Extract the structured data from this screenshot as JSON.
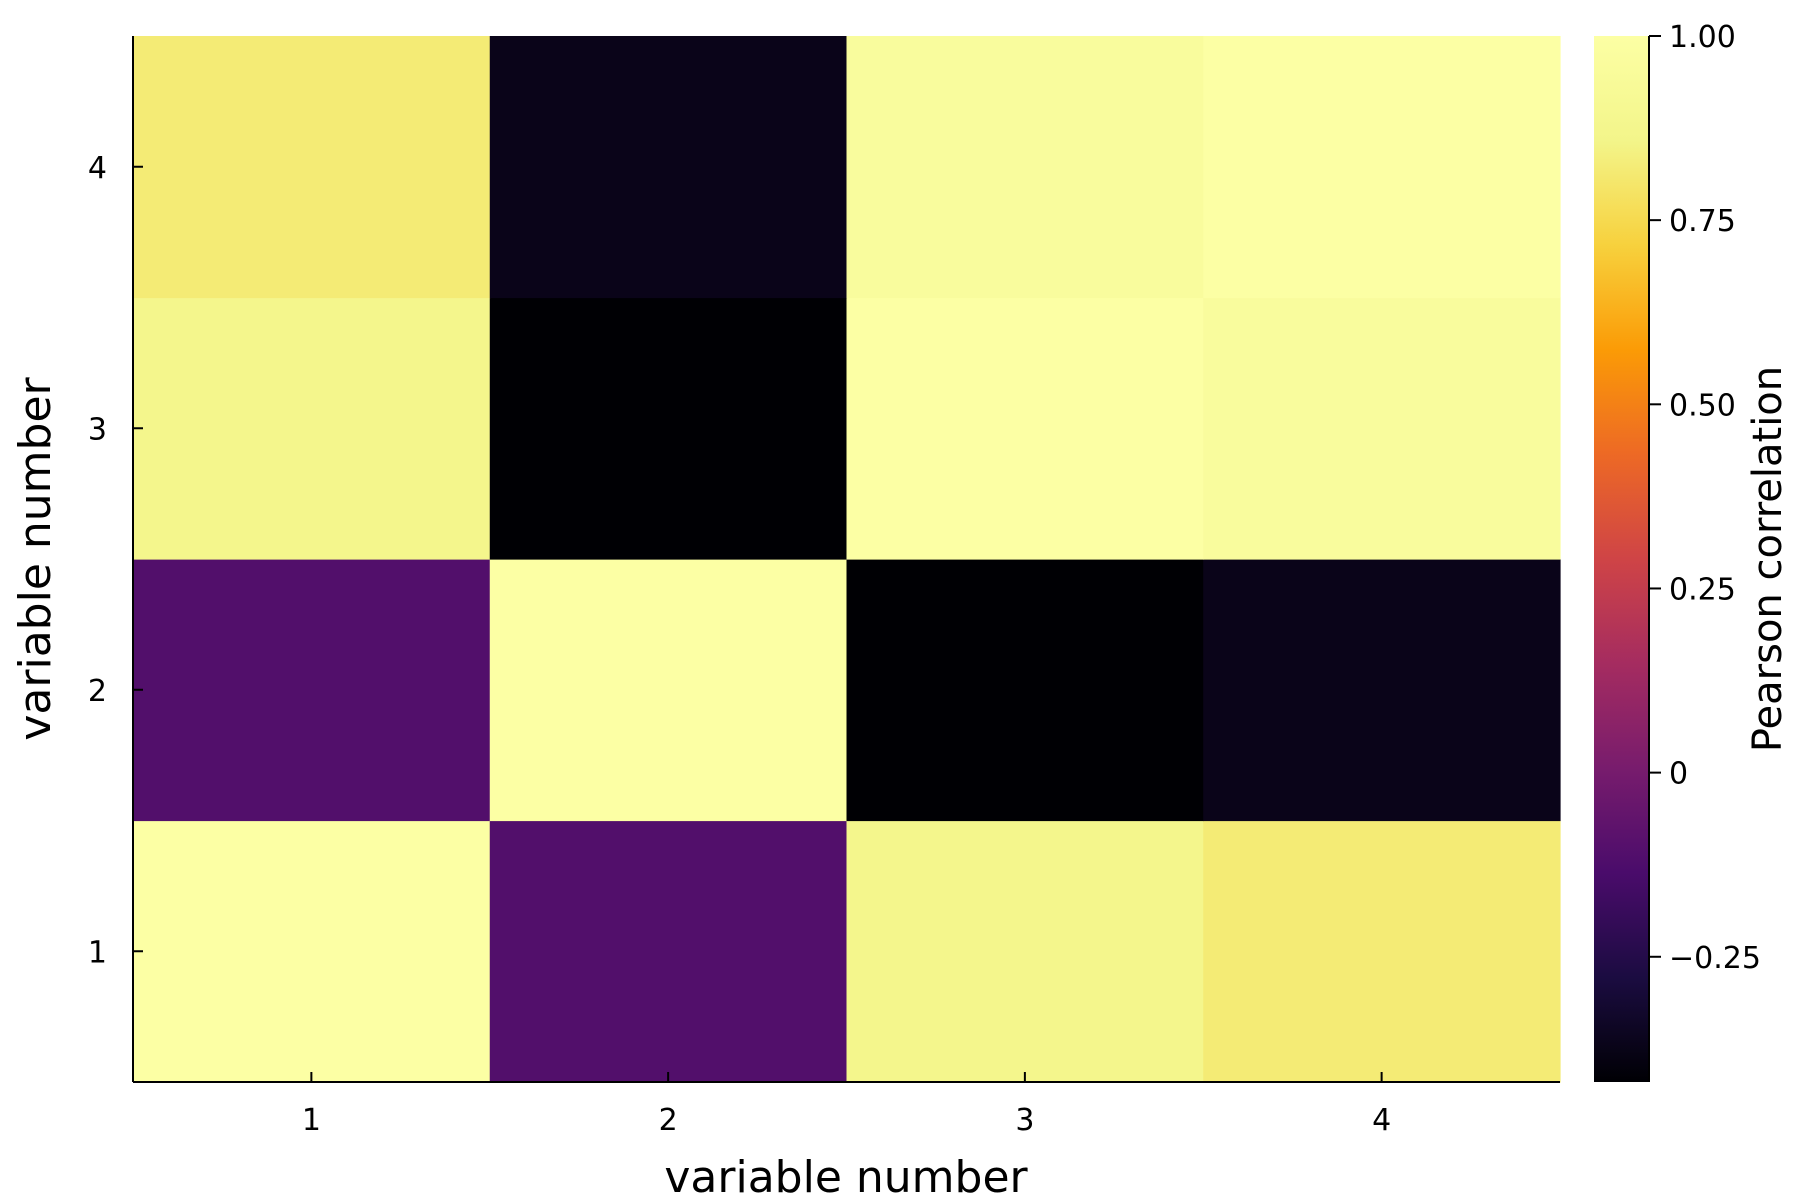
{
  "chart_data": {
    "type": "heatmap",
    "title": "",
    "xlabel": "variable number",
    "ylabel": "variable number",
    "x_categories": [
      "1",
      "2",
      "3",
      "4"
    ],
    "y_categories": [
      "1",
      "2",
      "3",
      "4"
    ],
    "values": [
      [
        1.0,
        -0.11,
        0.87,
        0.82
      ],
      [
        -0.11,
        1.0,
        -0.42,
        -0.37
      ],
      [
        0.87,
        -0.42,
        1.0,
        0.96
      ],
      [
        0.82,
        -0.37,
        0.96,
        1.0
      ]
    ],
    "colormap": "inferno",
    "colorbar": {
      "label": "Pearson correlation",
      "range": [
        -0.42,
        1.0
      ],
      "ticks": [
        -0.25,
        0,
        0.25,
        0.5,
        0.75,
        1.0
      ],
      "tick_labels": [
        "−0.25",
        "0",
        "0.25",
        "0.50",
        "0.75",
        "1.00"
      ]
    },
    "grid": false,
    "legend": "colorbar-right"
  }
}
